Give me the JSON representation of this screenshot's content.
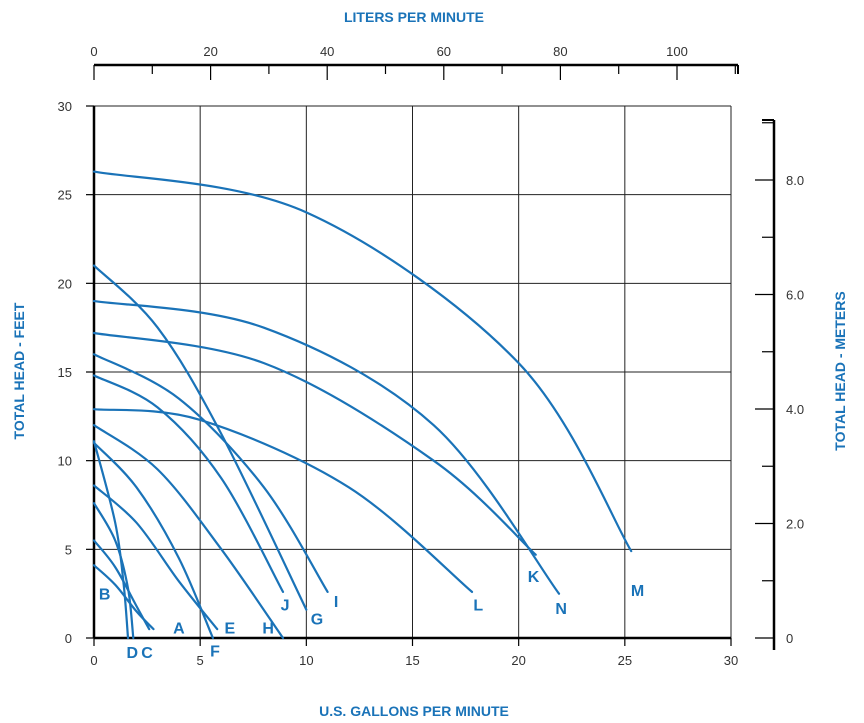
{
  "colors": {
    "accent": "#1a73b8",
    "grid": "#222222",
    "ticks": "#333333"
  },
  "chart_data": {
    "type": "line",
    "title": "",
    "xlabel": "U.S. GALLONS PER MINUTE",
    "ylabel": "TOTAL HEAD - FEET",
    "x2label": "LITERS PER MINUTE",
    "y2label": "TOTAL HEAD - METERS",
    "xlim": [
      0,
      30
    ],
    "ylim": [
      0,
      30
    ],
    "x2lim": [
      0,
      110
    ],
    "y2lim": [
      0,
      9
    ],
    "xticks": [
      0,
      5,
      10,
      15,
      20,
      25,
      30
    ],
    "yticks": [
      0,
      5,
      10,
      15,
      20,
      25,
      30
    ],
    "x2ticks": [
      0,
      20,
      40,
      60,
      80,
      100
    ],
    "y2ticks": [
      0,
      2,
      4,
      6,
      8
    ],
    "x2tick_labels": [
      "0",
      "20",
      "40",
      "60",
      "80",
      "100"
    ],
    "y2tick_labels": [
      "0",
      "2.0",
      "4.0",
      "6.0",
      "8.0"
    ],
    "grid": true,
    "series": [
      {
        "name": "A",
        "points": [
          [
            0,
            4.1
          ],
          [
            1,
            3.0
          ],
          [
            2,
            1.5
          ],
          [
            2.8,
            0.5
          ]
        ],
        "label_at": [
          4.0,
          0.6
        ]
      },
      {
        "name": "B",
        "points": [
          [
            0,
            5.5
          ],
          [
            1,
            4.0
          ],
          [
            2,
            1.8
          ],
          [
            2.6,
            0.5
          ]
        ],
        "label_at": [
          0.5,
          2.5
        ]
      },
      {
        "name": "C",
        "points": [
          [
            0,
            7.6
          ],
          [
            1,
            5.5
          ],
          [
            1.6,
            2.8
          ],
          [
            1.85,
            0
          ]
        ],
        "label_at": [
          2.5,
          -0.8
        ]
      },
      {
        "name": "D",
        "points": [
          [
            0,
            11.1
          ],
          [
            1,
            6.5
          ],
          [
            1.4,
            3.0
          ],
          [
            1.6,
            0
          ]
        ],
        "label_at": [
          1.8,
          -0.8
        ]
      },
      {
        "name": "E",
        "points": [
          [
            0,
            8.6
          ],
          [
            2,
            6.5
          ],
          [
            4,
            3.2
          ],
          [
            5.8,
            0.5
          ]
        ],
        "label_at": [
          6.4,
          0.6
        ]
      },
      {
        "name": "F",
        "points": [
          [
            0,
            11.0
          ],
          [
            2,
            8.5
          ],
          [
            4,
            4.5
          ],
          [
            5.6,
            0
          ]
        ],
        "label_at": [
          5.7,
          -0.7
        ]
      },
      {
        "name": "H",
        "points": [
          [
            0,
            12.0
          ],
          [
            3,
            9.5
          ],
          [
            6,
            5.0
          ],
          [
            8.9,
            0
          ]
        ],
        "label_at": [
          8.2,
          0.6
        ]
      },
      {
        "name": "J",
        "points": [
          [
            0,
            14.8
          ],
          [
            3,
            13.0
          ],
          [
            6,
            9.0
          ],
          [
            8.9,
            2.6
          ]
        ],
        "label_at": [
          9.0,
          1.9
        ]
      },
      {
        "name": "G",
        "points": [
          [
            0,
            21.0
          ],
          [
            3,
            17.5
          ],
          [
            6,
            11.5
          ],
          [
            10.0,
            1.6
          ]
        ],
        "label_at": [
          10.5,
          1.1
        ]
      },
      {
        "name": "I",
        "points": [
          [
            0,
            16.0
          ],
          [
            4,
            13.5
          ],
          [
            8,
            8.5
          ],
          [
            11.0,
            2.6
          ]
        ],
        "label_at": [
          11.4,
          2.1
        ]
      },
      {
        "name": "L",
        "points": [
          [
            0,
            12.9
          ],
          [
            5,
            12.3
          ],
          [
            12,
            8.5
          ],
          [
            17.8,
            2.6
          ]
        ],
        "label_at": [
          18.1,
          1.9
        ]
      },
      {
        "name": "K",
        "points": [
          [
            0,
            17.2
          ],
          [
            8,
            15.5
          ],
          [
            16,
            10.0
          ],
          [
            20.8,
            4.7
          ]
        ],
        "label_at": [
          20.7,
          3.5
        ]
      },
      {
        "name": "N",
        "points": [
          [
            0,
            19.0
          ],
          [
            8,
            17.5
          ],
          [
            16,
            12.0
          ],
          [
            21.9,
            2.5
          ]
        ],
        "label_at": [
          22.0,
          1.7
        ]
      },
      {
        "name": "M",
        "points": [
          [
            0,
            26.3
          ],
          [
            10,
            24.0
          ],
          [
            20,
            15.5
          ],
          [
            25.3,
            4.9
          ]
        ],
        "label_at": [
          25.6,
          2.7
        ]
      }
    ]
  }
}
